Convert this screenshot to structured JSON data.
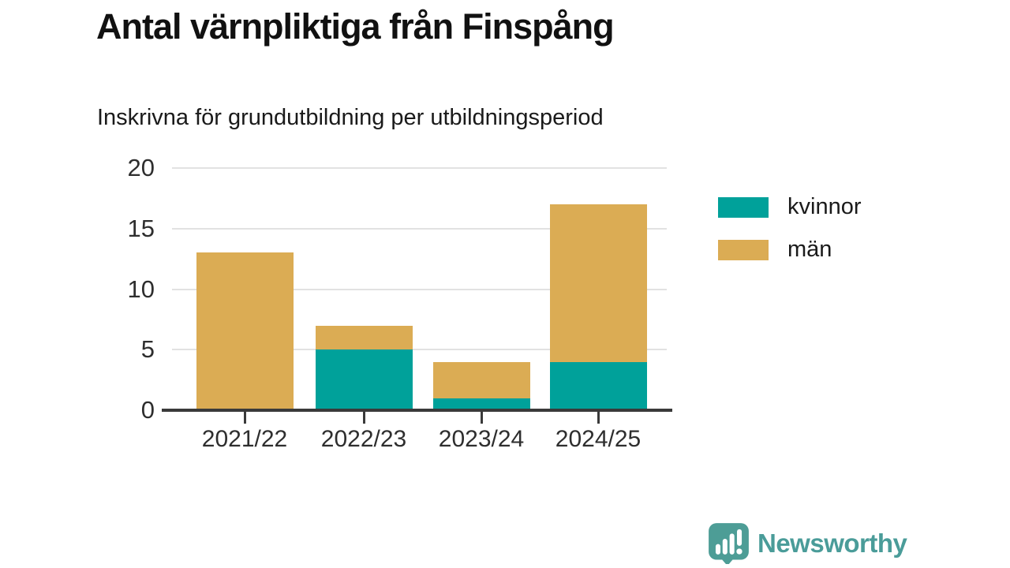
{
  "title": "Antal värnpliktiga från Finspång",
  "subtitle": "Inskrivna för grundutbildning per utbildningsperiod",
  "chart_data": {
    "type": "bar",
    "stacked": true,
    "title": "Antal värnpliktiga från Finspång",
    "subtitle": "Inskrivna för grundutbildning per utbildningsperiod",
    "categories": [
      "2021/22",
      "2022/23",
      "2023/24",
      "2024/25"
    ],
    "series": [
      {
        "name": "kvinnor",
        "color": "#00a19a",
        "values": [
          0,
          5,
          1,
          4
        ]
      },
      {
        "name": "män",
        "color": "#dbac54",
        "values": [
          13,
          2,
          3,
          13
        ]
      }
    ],
    "totals": [
      13,
      7,
      4,
      17
    ],
    "xlabel": "",
    "ylabel": "",
    "ylim": [
      0,
      20
    ],
    "yticks": [
      0,
      5,
      10,
      15,
      20
    ],
    "grid": true,
    "legend_position": "right"
  },
  "colors": {
    "kvinnor": "#00a19a",
    "man": "#dbac54",
    "gridline": "#e2e2e2",
    "axis": "#3a3a3a",
    "title_text": "#111111",
    "tick_text": "#2e2e2e",
    "logo": "#4a9c99"
  },
  "branding": {
    "logo_text": "Newsworthy",
    "logo_icon": "speech-bubble-bar-chart-exclamation"
  }
}
